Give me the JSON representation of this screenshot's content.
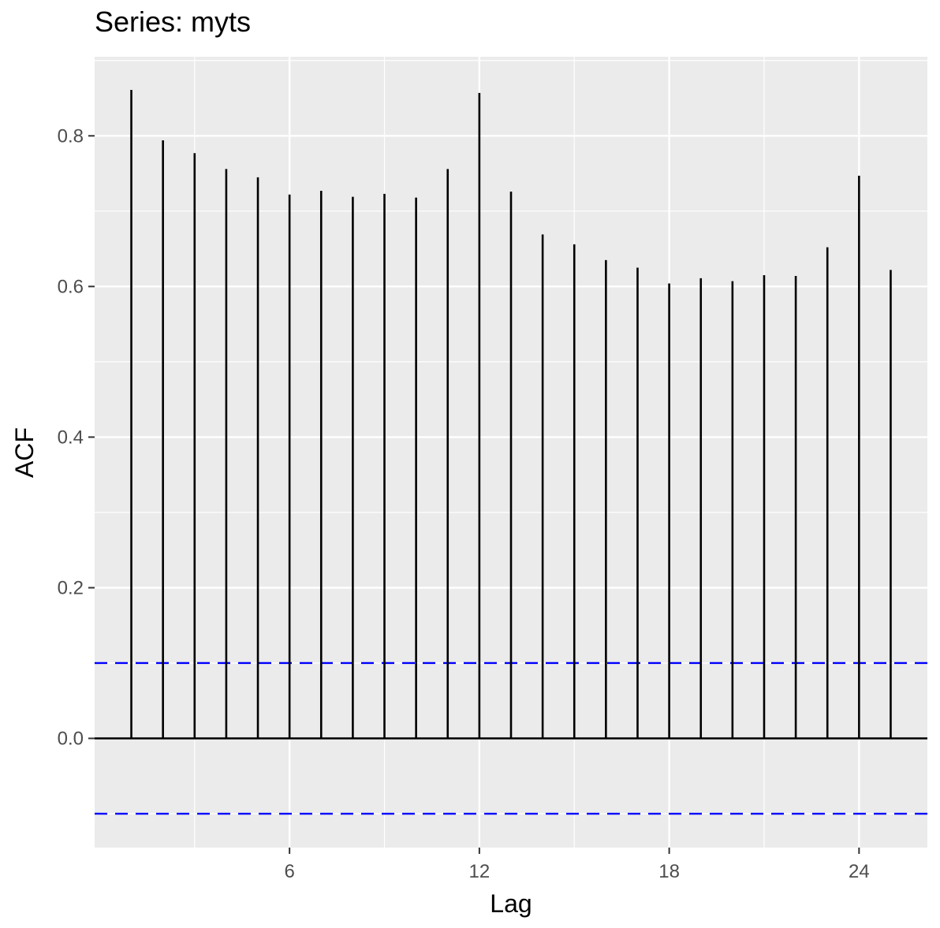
{
  "chart_data": {
    "type": "bar",
    "subtype": "acf-stem",
    "title": "Series: myts",
    "xlabel": "Lag",
    "ylabel": "ACF",
    "x": [
      1,
      2,
      3,
      4,
      5,
      6,
      7,
      8,
      9,
      10,
      11,
      12,
      13,
      14,
      15,
      16,
      17,
      18,
      19,
      20,
      21,
      22,
      23,
      24,
      25
    ],
    "values": [
      0.861,
      0.794,
      0.777,
      0.756,
      0.745,
      0.722,
      0.727,
      0.719,
      0.723,
      0.718,
      0.756,
      0.857,
      0.726,
      0.669,
      0.656,
      0.635,
      0.625,
      0.604,
      0.611,
      0.607,
      0.615,
      0.614,
      0.652,
      0.747,
      0.622
    ],
    "xlim": [
      -0.16,
      26.16
    ],
    "ylim": [
      -0.145,
      0.905
    ],
    "x_ticks": [
      6,
      12,
      18,
      24
    ],
    "x_tick_labels": [
      "6",
      "12",
      "18",
      "24"
    ],
    "y_ticks": [
      0.0,
      0.2,
      0.4,
      0.6,
      0.8
    ],
    "y_tick_labels": [
      "0.0",
      "0.2",
      "0.4",
      "0.6",
      "0.8"
    ],
    "confidence_bounds": [
      0.1,
      -0.1
    ],
    "zero_line": 0,
    "grid": true,
    "legend": "none",
    "colors": {
      "panel_background": "#ebebeb",
      "grid": "#ffffff",
      "stem": "#000000",
      "confidence": "#0000ff",
      "tick": "#333333"
    }
  }
}
